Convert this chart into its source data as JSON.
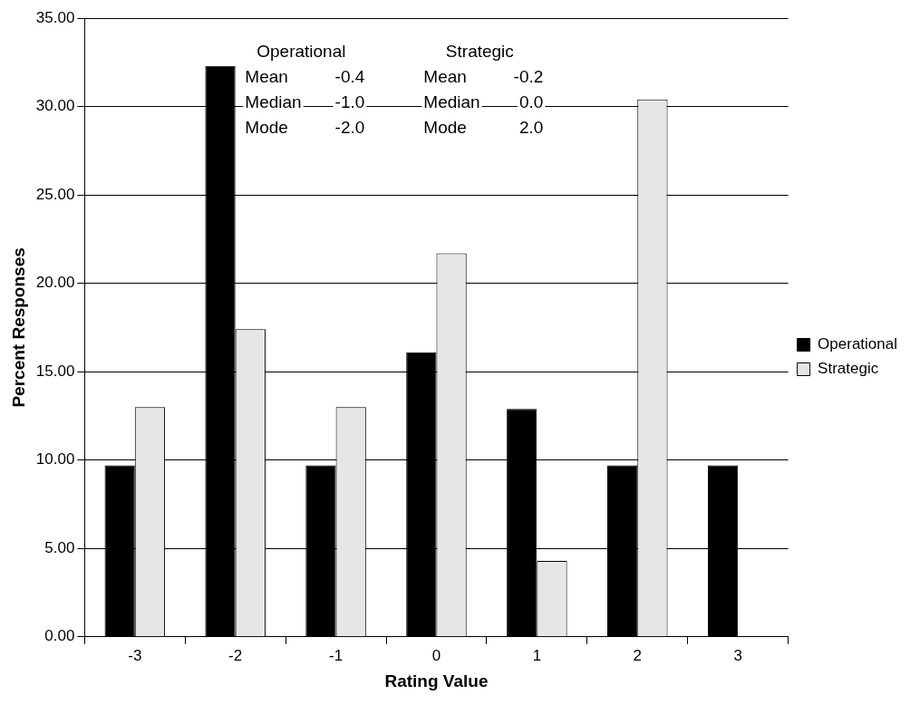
{
  "chart_data": {
    "type": "bar",
    "xlabel": "Rating Value",
    "ylabel": "Percent Responses",
    "categories": [
      "-3",
      "-2",
      "-1",
      "0",
      "1",
      "2",
      "3"
    ],
    "series": [
      {
        "name": "Operational",
        "color": "#000000",
        "values": [
          9.7,
          32.3,
          9.7,
          16.1,
          12.9,
          9.7,
          9.7
        ]
      },
      {
        "name": "Strategic",
        "color": "#e6e6e6",
        "values": [
          13.0,
          17.4,
          13.0,
          21.7,
          4.3,
          30.4,
          0
        ]
      }
    ],
    "ylim": [
      0,
      35
    ],
    "yticks": [
      {
        "value": 0,
        "label": "0.00"
      },
      {
        "value": 5,
        "label": "5.00"
      },
      {
        "value": 10,
        "label": "10.00"
      },
      {
        "value": 15,
        "label": "15.00"
      },
      {
        "value": 20,
        "label": "20.00"
      },
      {
        "value": 25,
        "label": "25.00"
      },
      {
        "value": 30,
        "label": "30.00"
      },
      {
        "value": 35,
        "label": "35.00"
      }
    ],
    "grid": "y",
    "legend": "right",
    "annotations": [
      "Operational",
      "Mean\t-0.4",
      "Median\t-1.0",
      "Mode\t-2.0",
      "Strategic",
      "Mean\t-0.2",
      "Median\t0.0",
      "Mode\t2.0"
    ]
  }
}
